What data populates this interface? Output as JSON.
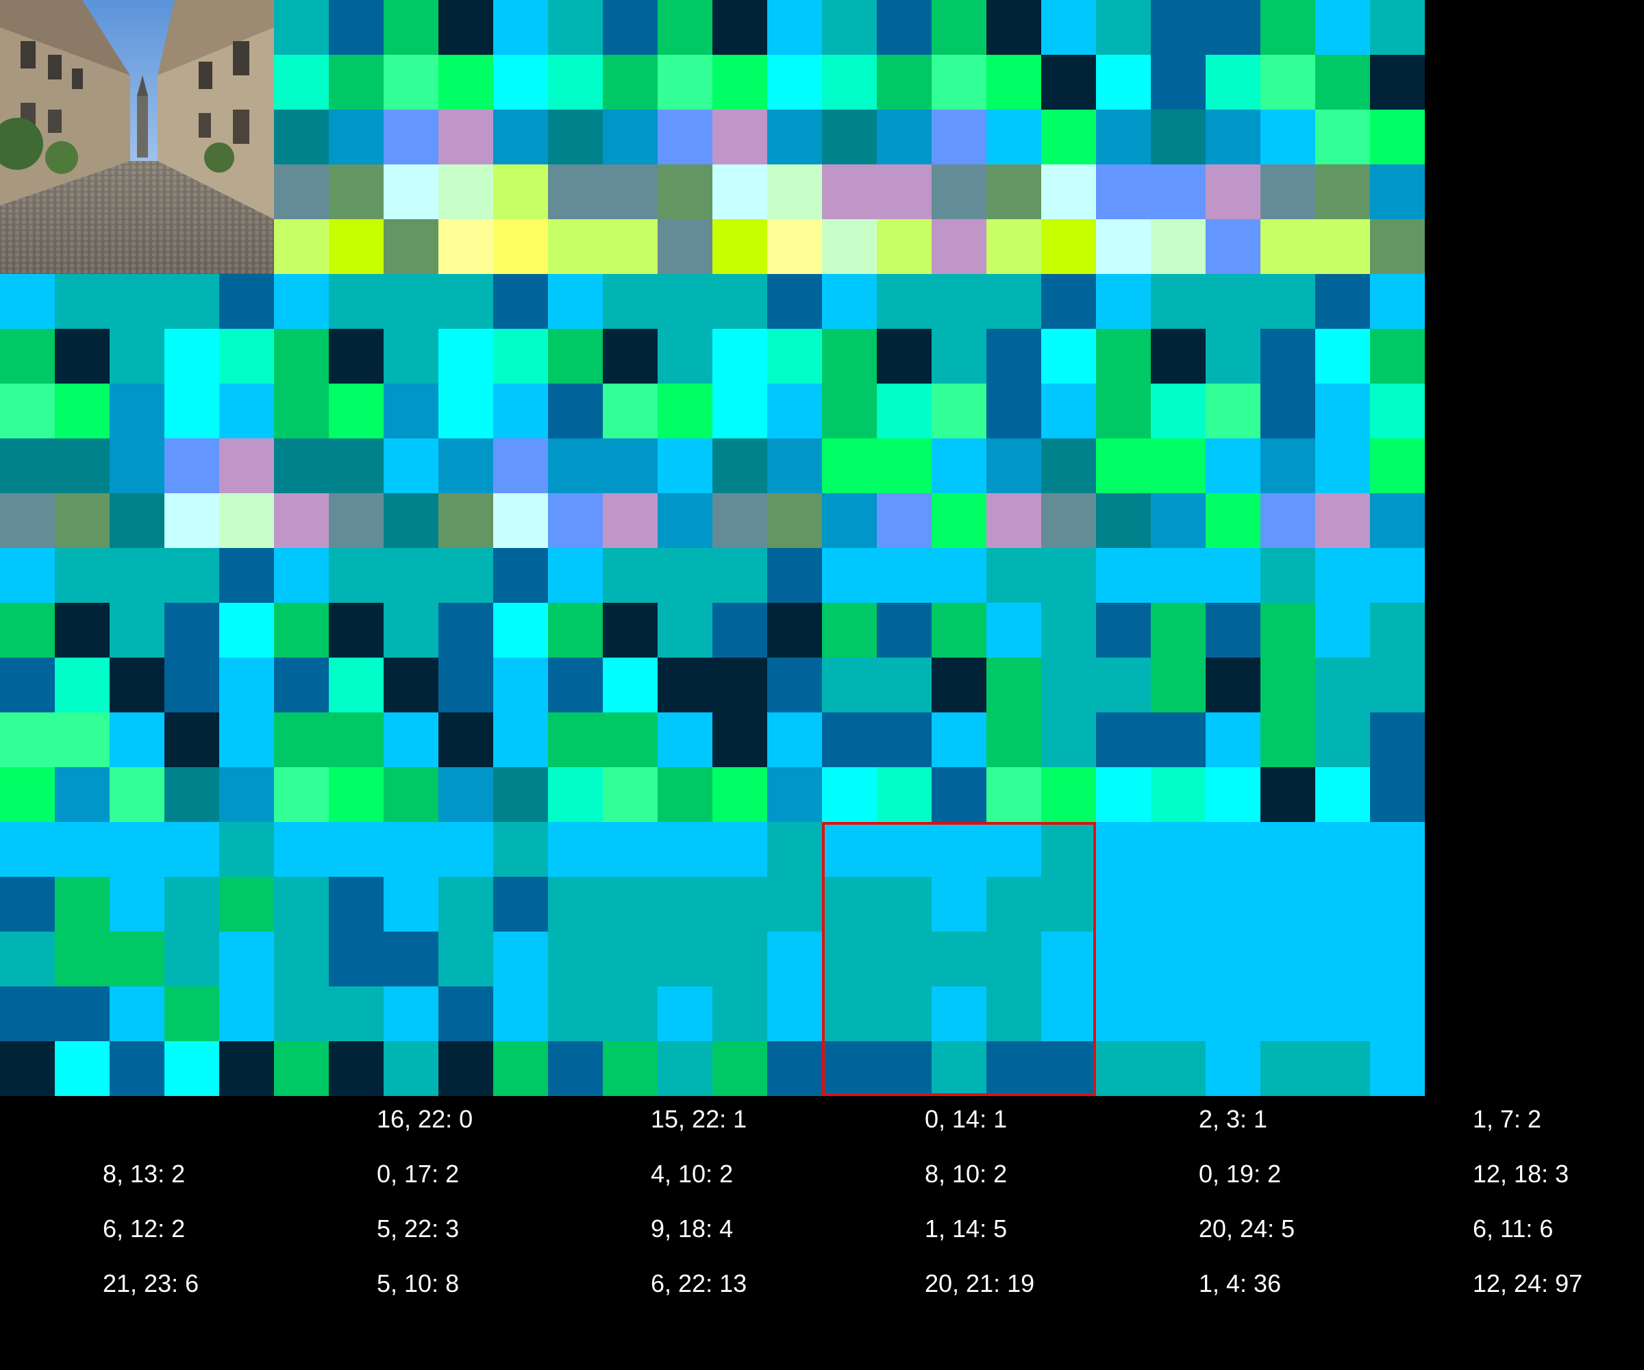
{
  "photo": {
    "description_icon": "street-photo-thumbnail"
  },
  "colors": {
    "A": "#00c8ff",
    "B": "#00b4b4",
    "C": "#00649b",
    "D": "#00c864",
    "E": "#002337",
    "F": "#00ffff",
    "G": "#00ffc8",
    "H": "#32ff96",
    "I": "#00ff64",
    "J": "#0096c8",
    "K": "#00828c",
    "L": "#6496ff",
    "M": "#c096c8",
    "N": "#648c96",
    "O": "#649664",
    "P": "#c8ffff",
    "Q": "#c8ffc8",
    "R": "#c8ff64",
    "S": "#c8ff00",
    "T": "#ffff96",
    "U": "#ffff64",
    "X": "#00c8ff"
  },
  "grid": [
    "XXXXXBCDEABCDEABCDEABCCDAB",
    "XXXXXGDHIFGDHIFGDHIEFCGHDE",
    "XXXXXKJLMJKJLMJKJLAIJKJAHI",
    "XXXXXNOPQRNNOPQMMNOPLLMNOJ",
    "XXXXXRSOTURRNSTQRMRSPQLRRO",
    "ABBBCABBBCABBBCABBBCABBBCA",
    "DEBFGDEBFGDEBFGDEBCFDEBCFD",
    "HIJFADIJFACHIFADGHCADGHCAG",
    "KKJLMKKAJLJJAKJIIAJKIIAJAI",
    "NOKPQMNKOPLMJNOJLIMNKJILMJ",
    "ABBBCABBBCABBBCAAABBAAABAA",
    "DEBCFDEBCFDEBCEDCDABCDCDAB",
    "CGECACGECACFEECBBEDBBDEDBB",
    "HHAEADDAEADDAEACCADBCCADBC",
    "IJHKJHIDJKGHDIJFGCHIFGFEFC",
    "AAAABAAAABAAAABAAAABAAAAAA",
    "CDABDBCABCBBBBBBBABBAAAAAA",
    "BDDBABCCBABBBBABBBBAAAAAAA",
    "CCADABBACABBABABBABAAAAAAA",
    "EFCFEDEBEDCDBDCCCBCCBBABBA"
  ],
  "labels": [
    {
      "text": "16, 22: 0"
    },
    {
      "text": "15, 22: 1"
    },
    {
      "text": "0, 14: 1"
    },
    {
      "text": "2, 3: 1"
    },
    {
      "text": "1, 7: 2"
    },
    {
      "text": "8, 13: 2"
    },
    {
      "text": "0, 17: 2"
    },
    {
      "text": "4, 10: 2"
    },
    {
      "text": "8, 10: 2"
    },
    {
      "text": "0, 19: 2"
    },
    {
      "text": "12, 18: 3"
    },
    {
      "text": "6, 12: 2"
    },
    {
      "text": "5, 22: 3"
    },
    {
      "text": "9, 18: 4"
    },
    {
      "text": "1, 14: 5"
    },
    {
      "text": "20, 24: 5"
    },
    {
      "text": "6, 11: 6"
    },
    {
      "text": "21, 23: 6"
    },
    {
      "text": "5, 10: 8"
    },
    {
      "text": "6, 22: 13"
    },
    {
      "text": "20, 21: 19"
    },
    {
      "text": "1, 4: 36"
    },
    {
      "text": "12, 24: 97"
    }
  ]
}
